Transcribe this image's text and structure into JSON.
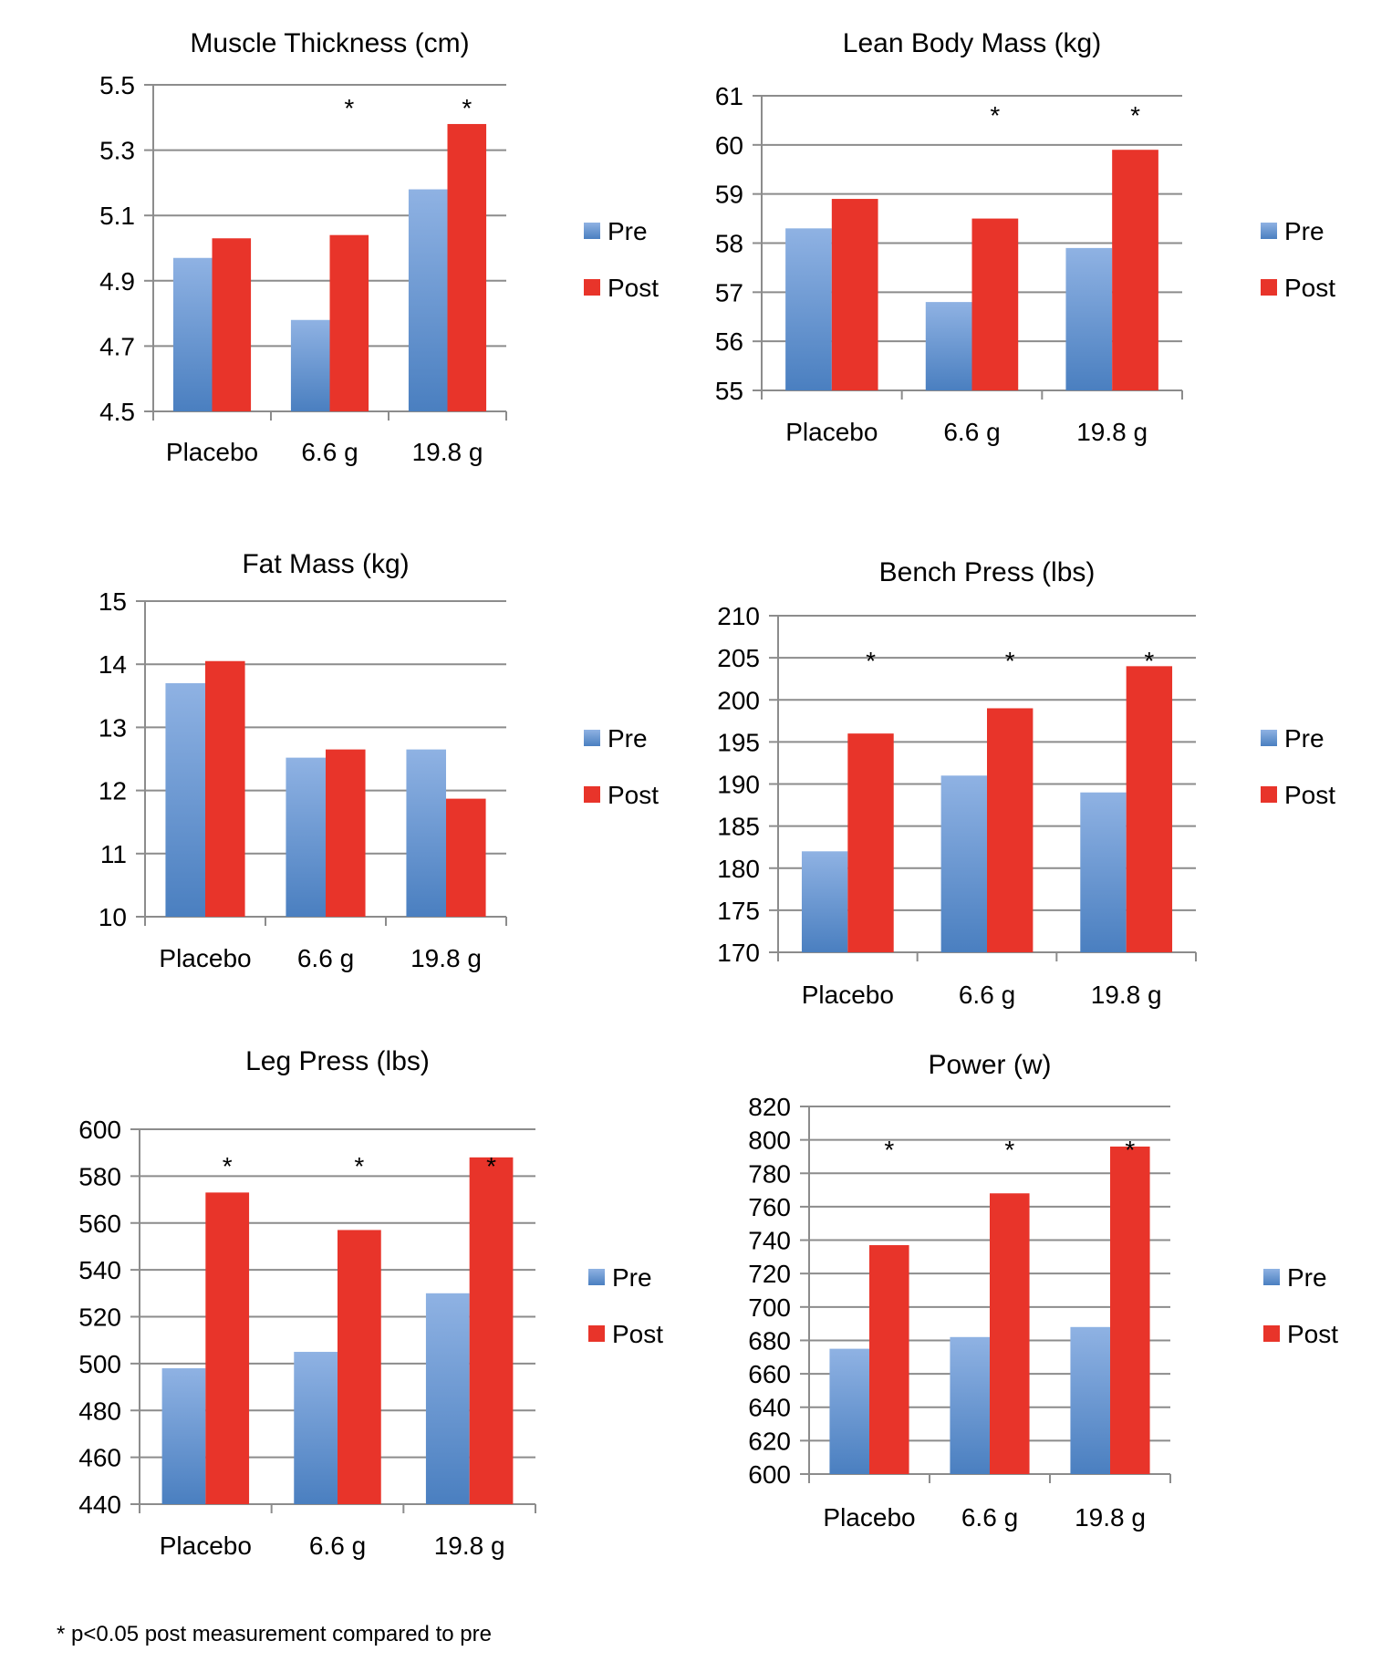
{
  "footnote": "* p<0.05 post measurement compared to pre",
  "colors": {
    "pre_top": "#8fb2e3",
    "pre_bottom": "#4a7fc0",
    "post": "#e8342a",
    "grid": "#8c8c8c",
    "axis": "#8c8c8c",
    "text": "#000000"
  },
  "chart_data": [
    {
      "type": "bar",
      "title": "Muscle Thickness (cm)",
      "categories": [
        "Placebo",
        "6.6 g",
        "19.8 g"
      ],
      "series": [
        {
          "name": "Pre",
          "values": [
            4.97,
            4.78,
            5.18
          ]
        },
        {
          "name": "Post",
          "values": [
            5.03,
            5.04,
            5.38
          ]
        }
      ],
      "ylim": [
        4.5,
        5.5
      ],
      "yticks": [
        "4.5",
        "4.7",
        "4.9",
        "5.1",
        "5.3",
        "5.5"
      ],
      "significance": [
        "",
        "*",
        "*"
      ],
      "legend": [
        "Pre",
        "Post"
      ],
      "legend_position": "right",
      "grid": true
    },
    {
      "type": "bar",
      "title": "Lean Body Mass (kg)",
      "categories": [
        "Placebo",
        "6.6 g",
        "19.8 g"
      ],
      "series": [
        {
          "name": "Pre",
          "values": [
            58.3,
            56.8,
            57.9
          ]
        },
        {
          "name": "Post",
          "values": [
            58.9,
            58.5,
            59.9
          ]
        }
      ],
      "ylim": [
        55,
        61
      ],
      "yticks": [
        "55",
        "56",
        "57",
        "58",
        "59",
        "60",
        "61"
      ],
      "significance": [
        "",
        "*",
        "*"
      ],
      "legend": [
        "Pre",
        "Post"
      ],
      "legend_position": "right",
      "grid": true
    },
    {
      "type": "bar",
      "title": "Fat Mass (kg)",
      "categories": [
        "Placebo",
        "6.6 g",
        "19.8 g"
      ],
      "series": [
        {
          "name": "Pre",
          "values": [
            13.7,
            12.52,
            12.65
          ]
        },
        {
          "name": "Post",
          "values": [
            14.05,
            12.65,
            11.87
          ]
        }
      ],
      "ylim": [
        10,
        15
      ],
      "yticks": [
        "10",
        "11",
        "12",
        "13",
        "14",
        "15"
      ],
      "significance": [
        "",
        "",
        ""
      ],
      "legend": [
        "Pre",
        "Post"
      ],
      "legend_position": "right",
      "grid": true
    },
    {
      "type": "bar",
      "title": "Bench Press (lbs)",
      "categories": [
        "Placebo",
        "6.6 g",
        "19.8 g"
      ],
      "series": [
        {
          "name": "Pre",
          "values": [
            182,
            191,
            189
          ]
        },
        {
          "name": "Post",
          "values": [
            196,
            199,
            204
          ]
        }
      ],
      "ylim": [
        170,
        210
      ],
      "yticks": [
        "170",
        "175",
        "180",
        "185",
        "190",
        "195",
        "200",
        "205",
        "210"
      ],
      "significance": [
        "*",
        "*",
        "*"
      ],
      "legend": [
        "Pre",
        "Post"
      ],
      "legend_position": "right",
      "grid": true
    },
    {
      "type": "bar",
      "title": "Leg Press (lbs)",
      "categories": [
        "Placebo",
        "6.6 g",
        "19.8 g"
      ],
      "series": [
        {
          "name": "Pre",
          "values": [
            498,
            505,
            530
          ]
        },
        {
          "name": "Post",
          "values": [
            573,
            557,
            588
          ]
        }
      ],
      "ylim": [
        440,
        600
      ],
      "yticks": [
        "440",
        "460",
        "480",
        "500",
        "520",
        "540",
        "560",
        "580",
        "600"
      ],
      "significance": [
        "*",
        "*",
        "*"
      ],
      "legend": [
        "Pre",
        "Post"
      ],
      "legend_position": "right",
      "grid": true
    },
    {
      "type": "bar",
      "title": "Power (w)",
      "categories": [
        "Placebo",
        "6.6 g",
        "19.8 g"
      ],
      "series": [
        {
          "name": "Pre",
          "values": [
            675,
            682,
            688
          ]
        },
        {
          "name": "Post",
          "values": [
            737,
            768,
            796
          ]
        }
      ],
      "ylim": [
        600,
        820
      ],
      "yticks": [
        "600",
        "620",
        "640",
        "660",
        "680",
        "700",
        "720",
        "740",
        "760",
        "780",
        "800",
        "820"
      ],
      "significance": [
        "*",
        "*",
        "*"
      ],
      "legend": [
        "Pre",
        "Post"
      ],
      "legend_position": "right",
      "grid": true
    }
  ]
}
